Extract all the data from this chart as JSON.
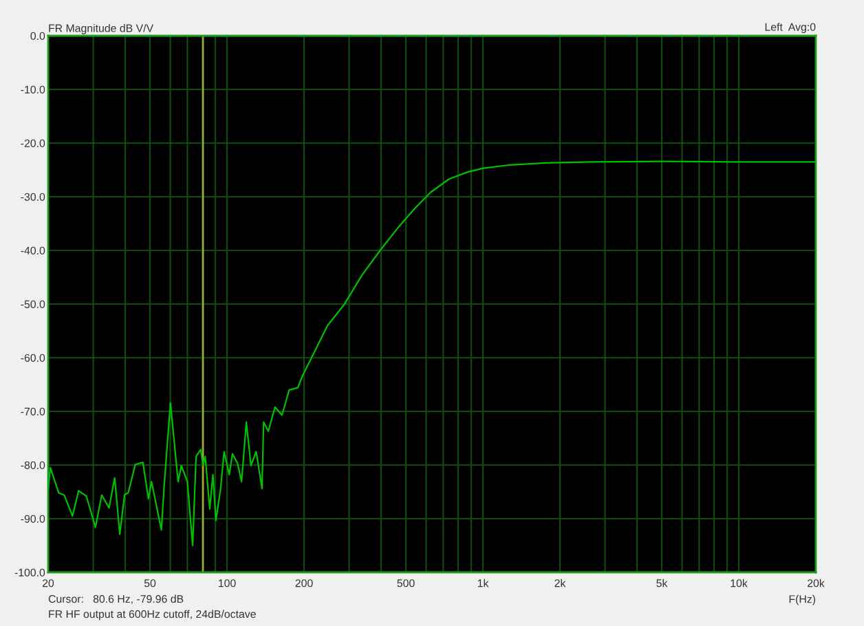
{
  "chart_data": {
    "type": "line",
    "title": "FR Magnitude dB V/V",
    "xlabel": "F(Hz)",
    "annotations": [
      "Left  Avg:0",
      "Cursor:   80.6 Hz, -79.96 dB",
      "FR HF output at 600Hz cutoff, 24dB/octave"
    ],
    "series": [
      {
        "color": "#00c000",
        "x": [
          20,
          20.4,
          22.0,
          23.1,
          24.9,
          26.3,
          28.2,
          30.6,
          32.4,
          34.6,
          36.4,
          38.1,
          39.8,
          41.1,
          43.8,
          46.9,
          49.3,
          50.7,
          55.4,
          56.7,
          60.1,
          64.4,
          66.3,
          70.0,
          73.4,
          75.7,
          78.9,
          80.6,
          82.2,
          85.6,
          88.1,
          90.5,
          94.4,
          97.4,
          102,
          105,
          110,
          114,
          119,
          124,
          130,
          137,
          139,
          145,
          154,
          164,
          175,
          189,
          197,
          216,
          247,
          286,
          337,
          398,
          469,
          541,
          624,
          737,
          871,
          1000,
          1260,
          1750,
          2660,
          4930,
          9180,
          20000
        ],
        "values": [
          -84.6,
          -80.5,
          -85.2,
          -85.6,
          -89.5,
          -84.8,
          -85.8,
          -91.6,
          -85.6,
          -88.0,
          -82.4,
          -92.9,
          -85.5,
          -85.2,
          -79.9,
          -79.5,
          -86.3,
          -83.1,
          -92.1,
          -84.4,
          -68.4,
          -83.1,
          -80.1,
          -83.1,
          -95.0,
          -78.4,
          -77.1,
          -80.0,
          -78.4,
          -88.2,
          -81.8,
          -90.3,
          -84.4,
          -77.5,
          -81.8,
          -77.9,
          -79.7,
          -83.1,
          -72.0,
          -80.1,
          -77.5,
          -84.4,
          -72.0,
          -73.7,
          -69.2,
          -70.7,
          -66.0,
          -65.6,
          -63.4,
          -59.6,
          -54.0,
          -50.2,
          -44.6,
          -39.9,
          -35.6,
          -32.2,
          -29.2,
          -26.7,
          -25.4,
          -24.7,
          -24.1,
          -23.7,
          -23.5,
          -23.4,
          -23.5,
          -23.5
        ]
      }
    ],
    "log": "x",
    "xlim": [
      20,
      20000
    ],
    "xticks": [
      20,
      {
        "value": 30,
        "label": null
      },
      {
        "value": 40,
        "label": null
      },
      50,
      {
        "value": 60,
        "label": null
      },
      {
        "value": 70,
        "label": null
      },
      {
        "value": 80,
        "label": null
      },
      {
        "value": 90,
        "label": null
      },
      100,
      200,
      {
        "value": 300,
        "label": null
      },
      {
        "value": 400,
        "label": null
      },
      500,
      {
        "value": 600,
        "label": null
      },
      {
        "value": 700,
        "label": null
      },
      {
        "value": 800,
        "label": null
      },
      {
        "value": 900,
        "label": null
      },
      {
        "value": 1000,
        "label": "1k"
      },
      {
        "value": 2000,
        "label": "2k"
      },
      {
        "value": 3000,
        "label": null
      },
      {
        "value": 4000,
        "label": null
      },
      {
        "value": 5000,
        "label": "5k"
      },
      {
        "value": 6000,
        "label": null
      },
      {
        "value": 7000,
        "label": null
      },
      {
        "value": 8000,
        "label": null
      },
      {
        "value": 9000,
        "label": null
      },
      {
        "value": 10000,
        "label": "10k"
      },
      {
        "value": 20000,
        "label": "20k"
      }
    ],
    "ylim": [
      -100,
      0
    ],
    "yticks": [
      {
        "value": 0,
        "label": "0.0"
      },
      {
        "value": -10,
        "label": "-10.0"
      },
      {
        "value": -20,
        "label": "-20.0"
      },
      {
        "value": -30,
        "label": "-30.0"
      },
      {
        "value": -40,
        "label": "-40.0"
      },
      {
        "value": -50,
        "label": "-50.0"
      },
      {
        "value": -60,
        "label": "-60.0"
      },
      {
        "value": -70,
        "label": "-70.0"
      },
      {
        "value": -80,
        "label": "-80.0"
      },
      {
        "value": -90,
        "label": "-90.0"
      },
      {
        "value": -100,
        "label": "-100.0"
      }
    ],
    "grid": true,
    "ref_lines": [
      {
        "axis": "x",
        "value": 80.6,
        "color": "#a8a838"
      }
    ]
  }
}
